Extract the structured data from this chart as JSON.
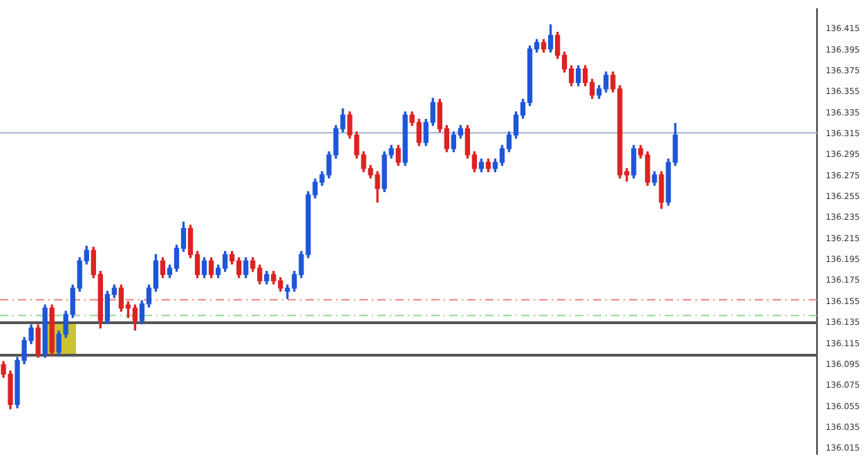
{
  "chart_data": {
    "type": "candlestick",
    "categories": [
      null,
      null,
      null,
      null,
      null,
      null,
      null,
      null,
      null,
      null,
      null,
      null,
      null,
      null,
      null,
      null,
      null,
      null,
      null,
      null,
      null,
      null,
      null,
      null,
      null,
      null,
      null,
      null,
      null,
      null,
      null,
      null,
      null,
      null,
      null,
      null,
      null,
      null,
      null,
      null,
      null,
      null,
      null,
      null,
      null,
      null,
      null,
      null,
      null,
      null,
      null,
      null,
      null,
      null,
      null,
      null,
      null,
      null,
      null,
      null,
      null,
      null,
      null,
      null,
      null,
      null,
      null,
      null,
      null,
      null,
      null,
      null,
      null,
      null,
      null,
      null,
      null,
      null,
      null,
      null,
      null,
      null,
      null,
      null,
      null,
      null,
      null,
      null,
      null,
      null,
      null,
      null,
      null,
      null,
      null,
      null,
      null,
      null,
      null,
      null,
      null,
      null,
      null,
      null,
      null,
      null,
      null,
      null,
      null,
      null,
      null,
      null,
      null,
      null,
      null,
      null,
      null,
      null
    ],
    "ohlc": [
      [
        136.095,
        136.098,
        136.083,
        136.086
      ],
      [
        136.086,
        136.089,
        136.053,
        136.057
      ],
      [
        136.057,
        136.102,
        136.054,
        136.099
      ],
      [
        136.099,
        136.121,
        136.096,
        136.118
      ],
      [
        136.118,
        136.133,
        136.115,
        136.13
      ],
      [
        136.13,
        136.133,
        136.102,
        136.105
      ],
      [
        136.105,
        136.152,
        136.102,
        136.149
      ],
      [
        136.149,
        136.152,
        136.104,
        136.107
      ],
      [
        136.107,
        136.127,
        136.104,
        136.124
      ],
      [
        136.124,
        136.146,
        136.121,
        136.143
      ],
      [
        136.143,
        136.171,
        136.14,
        136.168
      ],
      [
        136.168,
        136.197,
        136.165,
        136.194
      ],
      [
        136.194,
        136.208,
        136.191,
        136.204
      ],
      [
        136.204,
        136.207,
        136.178,
        136.181
      ],
      [
        136.181,
        136.184,
        136.13,
        136.137
      ],
      [
        136.137,
        136.165,
        136.134,
        136.162
      ],
      [
        136.162,
        136.171,
        136.159,
        136.168
      ],
      [
        136.168,
        136.171,
        136.146,
        136.149
      ],
      [
        136.152,
        136.155,
        136.14,
        136.149
      ],
      [
        136.149,
        136.152,
        136.128,
        136.137
      ],
      [
        136.137,
        136.156,
        136.134,
        136.153
      ],
      [
        136.153,
        136.171,
        136.15,
        136.168
      ],
      [
        136.168,
        136.2,
        136.165,
        136.194
      ],
      [
        136.194,
        136.197,
        136.178,
        136.181
      ],
      [
        136.181,
        136.19,
        136.178,
        136.187
      ],
      [
        136.187,
        136.209,
        136.184,
        136.206
      ],
      [
        136.206,
        136.231,
        136.203,
        136.225
      ],
      [
        136.225,
        136.228,
        136.197,
        136.2
      ],
      [
        136.2,
        136.203,
        136.178,
        136.181
      ],
      [
        136.181,
        136.197,
        136.178,
        136.194
      ],
      [
        136.194,
        136.197,
        136.178,
        136.181
      ],
      [
        136.181,
        136.19,
        136.178,
        136.187
      ],
      [
        136.187,
        136.203,
        136.184,
        136.2
      ],
      [
        136.2,
        136.203,
        136.191,
        136.194
      ],
      [
        136.194,
        136.197,
        136.178,
        136.181
      ],
      [
        136.181,
        136.197,
        136.178,
        136.194
      ],
      [
        136.194,
        136.197,
        136.184,
        136.187
      ],
      [
        136.187,
        136.19,
        136.172,
        136.175
      ],
      [
        136.175,
        136.184,
        136.172,
        136.181
      ],
      [
        136.181,
        136.184,
        136.172,
        136.175
      ],
      [
        136.175,
        136.178,
        136.165,
        136.168
      ],
      [
        136.165,
        136.171,
        136.158,
        136.168
      ],
      [
        136.168,
        136.184,
        136.165,
        136.181
      ],
      [
        136.181,
        136.203,
        136.178,
        136.2
      ],
      [
        136.2,
        136.26,
        136.197,
        136.257
      ],
      [
        136.257,
        136.272,
        136.254,
        136.269
      ],
      [
        136.269,
        136.279,
        136.266,
        136.276
      ],
      [
        136.276,
        136.298,
        136.273,
        136.295
      ],
      [
        136.295,
        136.323,
        136.292,
        136.32
      ],
      [
        136.32,
        136.339,
        136.317,
        136.333
      ],
      [
        136.333,
        136.336,
        136.311,
        136.314
      ],
      [
        136.314,
        136.317,
        136.292,
        136.295
      ],
      [
        136.295,
        136.298,
        136.279,
        136.282
      ],
      [
        136.282,
        136.285,
        136.273,
        136.276
      ],
      [
        136.276,
        136.279,
        136.25,
        136.263
      ],
      [
        136.263,
        136.298,
        136.26,
        136.295
      ],
      [
        136.295,
        136.304,
        136.292,
        136.301
      ],
      [
        136.301,
        136.304,
        136.285,
        136.288
      ],
      [
        136.288,
        136.336,
        136.285,
        136.333
      ],
      [
        136.333,
        136.336,
        136.323,
        136.326
      ],
      [
        136.326,
        136.329,
        136.304,
        136.307
      ],
      [
        136.307,
        136.329,
        136.304,
        136.326
      ],
      [
        136.326,
        136.349,
        136.323,
        136.345
      ],
      [
        136.345,
        136.348,
        136.317,
        136.32
      ],
      [
        136.32,
        136.323,
        136.298,
        136.301
      ],
      [
        136.301,
        136.317,
        136.298,
        136.314
      ],
      [
        136.314,
        136.323,
        136.311,
        136.32
      ],
      [
        136.32,
        136.323,
        136.292,
        136.295
      ],
      [
        136.295,
        136.298,
        136.279,
        136.282
      ],
      [
        136.282,
        136.291,
        136.279,
        136.288
      ],
      [
        136.288,
        136.291,
        136.279,
        136.282
      ],
      [
        136.282,
        136.291,
        136.279,
        136.288
      ],
      [
        136.288,
        136.304,
        136.285,
        136.301
      ],
      [
        136.301,
        136.317,
        136.298,
        136.314
      ],
      [
        136.314,
        136.336,
        136.311,
        136.333
      ],
      [
        136.333,
        136.348,
        136.33,
        136.345
      ],
      [
        136.345,
        136.399,
        136.342,
        136.396
      ],
      [
        136.396,
        136.405,
        136.393,
        136.402
      ],
      [
        136.402,
        136.405,
        136.393,
        136.396
      ],
      [
        136.396,
        136.419,
        136.393,
        136.409
      ],
      [
        136.409,
        136.412,
        136.387,
        136.39
      ],
      [
        136.39,
        136.393,
        136.374,
        136.377
      ],
      [
        136.377,
        136.38,
        136.361,
        136.364
      ],
      [
        136.364,
        136.38,
        136.361,
        136.377
      ],
      [
        136.377,
        136.38,
        136.361,
        136.364
      ],
      [
        136.364,
        136.367,
        136.349,
        136.352
      ],
      [
        136.352,
        136.361,
        136.349,
        136.358
      ],
      [
        136.358,
        136.374,
        136.355,
        136.371
      ],
      [
        136.371,
        136.374,
        136.355,
        136.358
      ],
      [
        136.358,
        136.361,
        136.273,
        136.276
      ],
      [
        136.279,
        136.282,
        136.27,
        136.276
      ],
      [
        136.276,
        136.304,
        136.273,
        136.301
      ],
      [
        136.301,
        136.304,
        136.292,
        136.295
      ],
      [
        136.295,
        136.298,
        136.266,
        136.269
      ],
      [
        136.269,
        136.279,
        136.266,
        136.276
      ],
      [
        136.276,
        136.279,
        136.244,
        136.25
      ],
      [
        136.25,
        136.291,
        136.247,
        136.288
      ],
      [
        136.288,
        136.325,
        136.285,
        136.314
      ],
      null,
      null,
      null,
      null,
      null,
      null,
      null,
      null,
      null,
      null,
      null,
      null,
      null,
      null,
      null,
      null,
      null,
      null,
      null,
      null
    ],
    "colors": [
      "#dd2222",
      "#dd2222",
      "#1e56d8",
      "#1e56d8",
      "#1e56d8",
      "#dd2222",
      "#1e56d8",
      "#dd2222",
      "#1e56d8",
      "#1e56d8",
      "#1e56d8",
      "#1e56d8",
      "#1e56d8",
      "#dd2222",
      "#dd2222",
      "#1e56d8",
      "#1e56d8",
      "#dd2222",
      "#dd2222",
      "#dd2222",
      "#1e56d8",
      "#1e56d8",
      "#1e56d8",
      "#dd2222",
      "#1e56d8",
      "#1e56d8",
      "#1e56d8",
      "#dd2222",
      "#dd2222",
      "#1e56d8",
      "#dd2222",
      "#1e56d8",
      "#1e56d8",
      "#dd2222",
      "#dd2222",
      "#1e56d8",
      "#dd2222",
      "#dd2222",
      "#1e56d8",
      "#dd2222",
      "#dd2222",
      "#1e56d8",
      "#1e56d8",
      "#1e56d8",
      "#1e56d8",
      "#1e56d8",
      "#1e56d8",
      "#1e56d8",
      "#1e56d8",
      "#1e56d8",
      "#dd2222",
      "#dd2222",
      "#dd2222",
      "#dd2222",
      "#dd2222",
      "#1e56d8",
      "#1e56d8",
      "#dd2222",
      "#1e56d8",
      "#dd2222",
      "#dd2222",
      "#1e56d8",
      "#1e56d8",
      "#dd2222",
      "#dd2222",
      "#1e56d8",
      "#1e56d8",
      "#dd2222",
      "#dd2222",
      "#1e56d8",
      "#dd2222",
      "#1e56d8",
      "#1e56d8",
      "#1e56d8",
      "#1e56d8",
      "#1e56d8",
      "#1e56d8",
      "#1e56d8",
      "#dd2222",
      "#1e56d8",
      "#dd2222",
      "#dd2222",
      "#dd2222",
      "#1e56d8",
      "#dd2222",
      "#dd2222",
      "#1e56d8",
      "#1e56d8",
      "#dd2222",
      "#dd2222",
      "#dd2222",
      "#1e56d8",
      "#dd2222",
      "#dd2222",
      "#1e56d8",
      "#dd2222",
      "#1e56d8",
      "#1e56d8",
      null,
      null,
      null,
      null,
      null,
      null,
      null,
      null,
      null,
      null,
      null,
      null,
      null,
      null,
      null,
      null,
      null,
      null,
      null,
      null
    ],
    "ylim": [
      136.01,
      136.434
    ],
    "yticks": [
      136.015,
      136.035,
      136.055,
      136.075,
      136.095,
      136.115,
      136.135,
      136.155,
      136.175,
      136.195,
      136.215,
      136.235,
      136.255,
      136.275,
      136.295,
      136.315,
      136.335,
      136.355,
      136.375,
      136.395,
      136.415
    ],
    "tick_labels": "y",
    "grid": false,
    "legend": false,
    "ref_lines": [
      {
        "axis": "y",
        "value": 136.316,
        "color": "#9fb2cc",
        "line_style": "solid"
      },
      {
        "axis": "y",
        "value": 136.157,
        "color": "#f08080",
        "line_style": "dashed"
      },
      {
        "axis": "y",
        "value": 136.142,
        "color": "#90d890",
        "line_style": "dashed"
      },
      {
        "axis": "y",
        "value": 136.135,
        "color": "#555555",
        "line_style": "solid"
      },
      {
        "axis": "y",
        "value": 136.104,
        "color": "#555555",
        "line_style": "solid"
      }
    ]
  }
}
